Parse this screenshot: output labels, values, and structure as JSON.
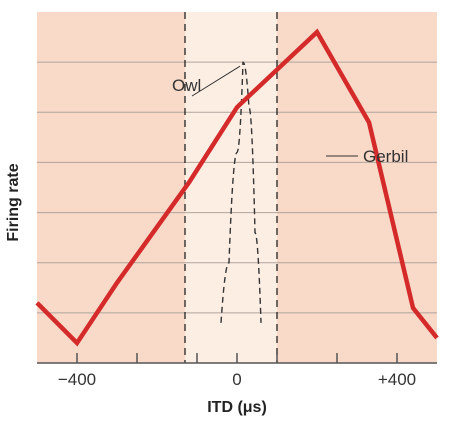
{
  "chart_data": {
    "type": "line",
    "title": "",
    "xlabel": "ITD (μs)",
    "ylabel": "Firing rate",
    "xlim": [
      -500,
      500
    ],
    "ylim": [
      0,
      7
    ],
    "x_ticks": [
      -400,
      -250,
      -100,
      0,
      100,
      250,
      400
    ],
    "x_tick_labels": [
      {
        "value": -400,
        "label": "−400"
      },
      {
        "value": 0,
        "label": "0"
      },
      {
        "value": 400,
        "label": "+400"
      }
    ],
    "y_gridlines": [
      1,
      2,
      3,
      4,
      5,
      6
    ],
    "grid": true,
    "shaded_region": {
      "x_start": -130,
      "x_end": 100
    },
    "series": [
      {
        "name": "Gerbil",
        "style": "solid",
        "color": "#d42a2a",
        "x": [
          -500,
          -400,
          -300,
          -120,
          0,
          200,
          330,
          440,
          500
        ],
        "y": [
          1.2,
          0.4,
          1.6,
          3.6,
          5.1,
          6.6,
          4.8,
          1.1,
          0.5
        ]
      },
      {
        "name": "Owl",
        "style": "dashed",
        "color": "#333333",
        "x": [
          -40,
          -20,
          0,
          15,
          30,
          45,
          60
        ],
        "y": [
          0.8,
          2.0,
          4.2,
          6.0,
          5.1,
          2.6,
          0.8
        ]
      }
    ]
  },
  "colors": {
    "background_panel": "#f9d9c8",
    "shaded_band": "#fdeee4",
    "gridline": "#b0a49c",
    "gerbil": "#d42a2a",
    "owl": "#333333",
    "axis": "#555555"
  }
}
